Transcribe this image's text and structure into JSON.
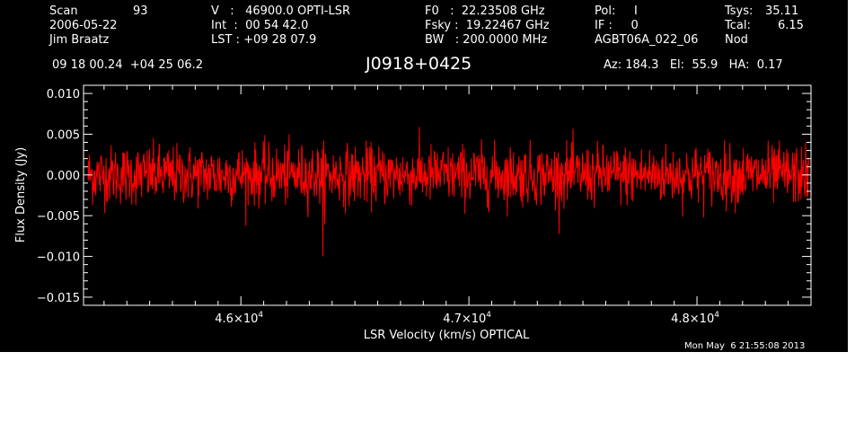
{
  "header": {
    "scan_label": "Scan",
    "scan_value": "93",
    "date": "2006-05-22",
    "observer": "Jim Braatz",
    "v_line": "V   :   46900.0 OPTI-LSR",
    "int_line": "Int  :  00 54 42.0",
    "lst_line": "LST : +09 28 07.9",
    "f0_line": "F0   :  22.23508 GHz",
    "fsky_line": "Fsky :  19.22467 GHz",
    "bw_line": "BW   : 200.0000 MHz",
    "pol_line": "Pol:     I",
    "if_line": "IF :     0",
    "project": "AGBT06A_022_06",
    "tsys_label": "Tsys:",
    "tsys_value": "35.11",
    "tcal_label": "Tcal:",
    "tcal_value": "6.15",
    "procedure": "Nod",
    "coords": "09 18 00.24  +04 25 06.2",
    "source": "J0918+0425",
    "az_el_ha": "Az: 184.3   El:  55.9   HA:  0.17"
  },
  "footer": {
    "timestamp": "Mon May  6 21:55:08 2013"
  },
  "colors": {
    "background": "#000000",
    "axes": "#ffffff",
    "series": "#ff0000"
  },
  "chart_data": {
    "type": "line",
    "xlabel": "LSR Velocity (km/s) OPTICAL",
    "ylabel": "Flux Density (Jy)",
    "xlim": [
      45310,
      46920
    ],
    "xlim_full": [
      45310,
      48500
    ],
    "ylim": [
      -0.016,
      0.011
    ],
    "x_range_data": [
      45330,
      48490
    ],
    "xticks": [
      {
        "value": 46000,
        "mantissa": "4.6×10",
        "exp": "4"
      },
      {
        "value": 47000,
        "mantissa": "4.7×10",
        "exp": "4"
      },
      {
        "value": 48000,
        "mantissa": "4.8×10",
        "exp": "4"
      }
    ],
    "yticks": [
      {
        "value": 0.01,
        "label": "0.010"
      },
      {
        "value": 0.005,
        "label": "0.005"
      },
      {
        "value": 0.0,
        "label": "0.000"
      },
      {
        "value": -0.005,
        "label": "−0.005"
      },
      {
        "value": -0.01,
        "label": "−0.010"
      },
      {
        "value": -0.015,
        "label": "−0.015"
      }
    ],
    "series": [
      {
        "noise_rms": 0.0018,
        "mean": 0.0,
        "n_points": 1600,
        "min_spike": {
          "x": 46360,
          "y": -0.01
        }
      }
    ]
  }
}
